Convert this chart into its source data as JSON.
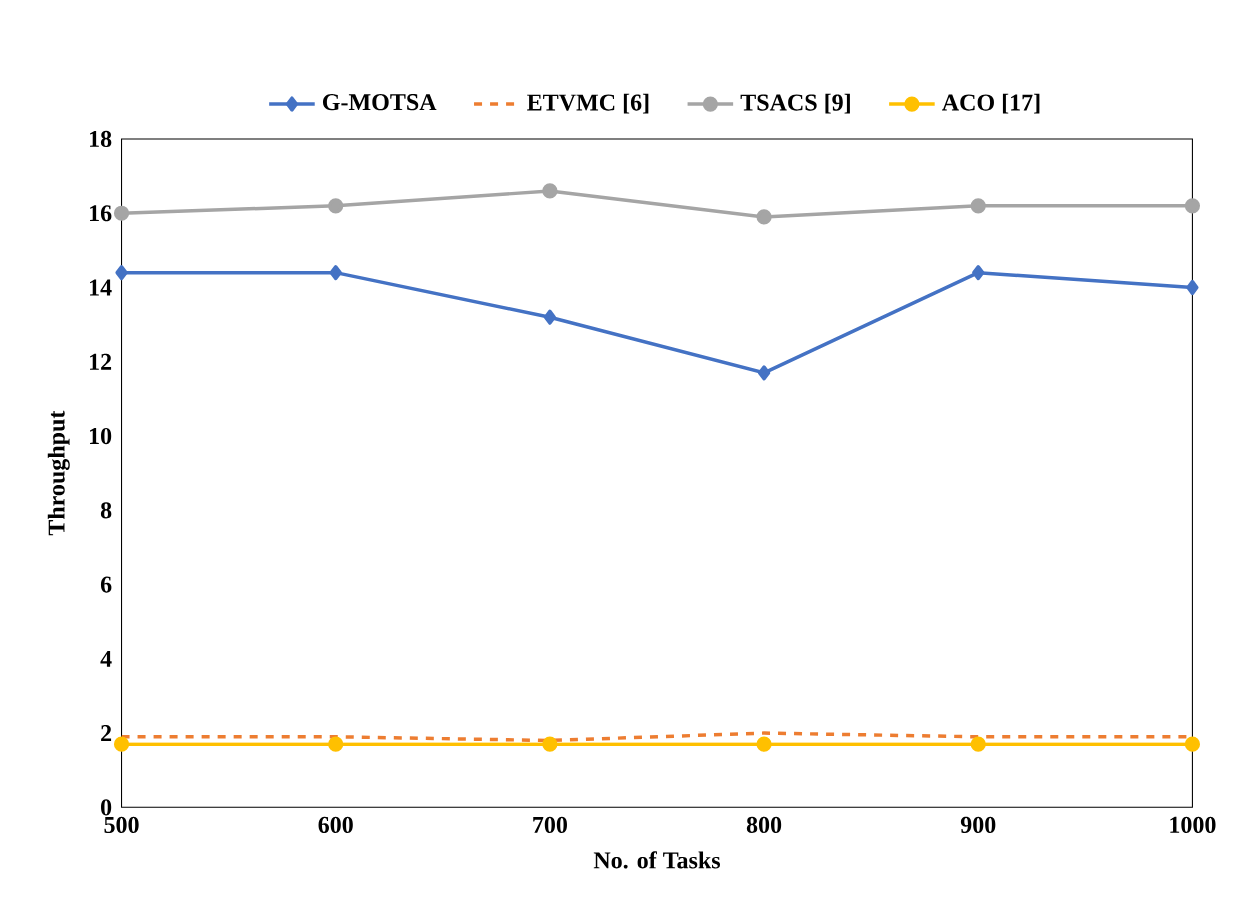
{
  "chart_data": {
    "type": "line",
    "xlabel": "No. of Tasks",
    "ylabel": "Throughput",
    "x": [
      500,
      600,
      700,
      800,
      900,
      1000
    ],
    "series": [
      {
        "name": "G-MOTSA",
        "color": "#4472c4",
        "marker": "diamond",
        "line_style": "solid",
        "values": [
          14.4,
          14.4,
          13.2,
          11.7,
          14.4,
          14.0
        ]
      },
      {
        "name": "ETVMC [6]",
        "color": "#ed7d31",
        "marker": "none",
        "line_style": "dashed",
        "values": [
          1.9,
          1.9,
          1.8,
          2.0,
          1.9,
          1.9
        ]
      },
      {
        "name": "TSACS [9]",
        "color": "#a5a5a5",
        "marker": "circle",
        "line_style": "solid",
        "values": [
          16.0,
          16.2,
          16.6,
          15.9,
          16.2,
          16.2
        ]
      },
      {
        "name": "ACO [17]",
        "color": "#ffc000",
        "marker": "circle",
        "line_style": "solid",
        "values": [
          1.7,
          1.7,
          1.7,
          1.7,
          1.7,
          1.7
        ]
      }
    ],
    "xlim": [
      500,
      1000
    ],
    "xticks": [
      500,
      600,
      700,
      800,
      900,
      1000
    ],
    "ylim": [
      0,
      18
    ],
    "yticks": [
      0,
      2,
      4,
      6,
      8,
      10,
      12,
      14,
      16,
      18
    ],
    "grid": false,
    "legend": "top"
  }
}
